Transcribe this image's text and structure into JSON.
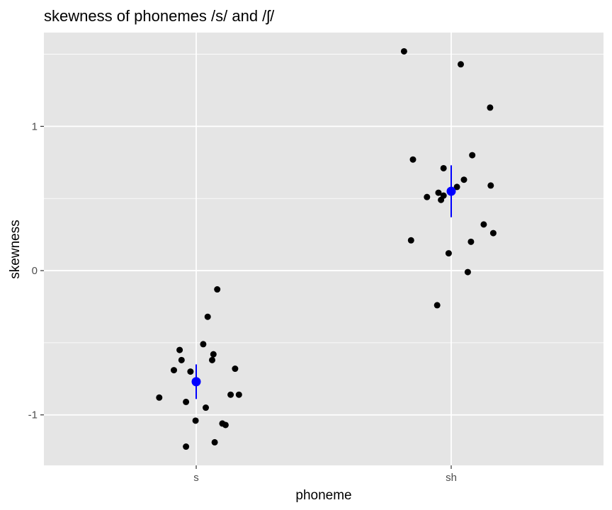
{
  "chart_data": {
    "type": "scatter",
    "title": "skewness of phonemes /s/ and /ʃ/",
    "xlabel": "phoneme",
    "ylabel": "skewness",
    "categories": [
      "s",
      "sh"
    ],
    "y_ticks": [
      -1,
      0,
      1
    ],
    "y_tick_labels": [
      "-1",
      "0",
      "1"
    ],
    "ylim": [
      -1.35,
      1.65
    ],
    "grid": true,
    "colors": {
      "panel": "#E5E5E5",
      "grid": "#FFFFFF",
      "points": "#000000",
      "summary": "#0000FF"
    },
    "series": [
      {
        "category": "s",
        "points": [
          {
            "x": -0.29,
            "y": -0.88
          },
          {
            "x": -0.175,
            "y": -0.69
          },
          {
            "x": -0.13,
            "y": -0.55
          },
          {
            "x": -0.115,
            "y": -0.62
          },
          {
            "x": -0.08,
            "y": -0.91
          },
          {
            "x": -0.08,
            "y": -1.22
          },
          {
            "x": -0.045,
            "y": -0.7
          },
          {
            "x": -0.005,
            "y": -1.04
          },
          {
            "x": 0.055,
            "y": -0.51
          },
          {
            "x": 0.075,
            "y": -0.95
          },
          {
            "x": 0.09,
            "y": -0.32
          },
          {
            "x": 0.125,
            "y": -0.62
          },
          {
            "x": 0.135,
            "y": -0.58
          },
          {
            "x": 0.145,
            "y": -1.19
          },
          {
            "x": 0.165,
            "y": -0.13
          },
          {
            "x": 0.205,
            "y": -1.06
          },
          {
            "x": 0.23,
            "y": -1.07
          },
          {
            "x": 0.27,
            "y": -0.86
          },
          {
            "x": 0.305,
            "y": -0.68
          },
          {
            "x": 0.335,
            "y": -0.86
          }
        ],
        "mean": -0.77,
        "ci": [
          -0.89,
          -0.65
        ]
      },
      {
        "category": "sh",
        "points": [
          {
            "x": -0.37,
            "y": 1.52
          },
          {
            "x": -0.315,
            "y": 0.21
          },
          {
            "x": -0.3,
            "y": 0.77
          },
          {
            "x": -0.19,
            "y": 0.51
          },
          {
            "x": -0.11,
            "y": -0.24
          },
          {
            "x": -0.1,
            "y": 0.54
          },
          {
            "x": -0.08,
            "y": 0.49
          },
          {
            "x": -0.06,
            "y": 0.71
          },
          {
            "x": -0.06,
            "y": 0.52
          },
          {
            "x": -0.02,
            "y": 0.12
          },
          {
            "x": 0.045,
            "y": 0.58
          },
          {
            "x": 0.075,
            "y": 1.43
          },
          {
            "x": 0.1,
            "y": 0.63
          },
          {
            "x": 0.13,
            "y": -0.01
          },
          {
            "x": 0.155,
            "y": 0.2
          },
          {
            "x": 0.165,
            "y": 0.8
          },
          {
            "x": 0.255,
            "y": 0.32
          },
          {
            "x": 0.305,
            "y": 1.13
          },
          {
            "x": 0.31,
            "y": 0.59
          },
          {
            "x": 0.33,
            "y": 0.26
          }
        ],
        "mean": 0.55,
        "ci": [
          0.37,
          0.73
        ]
      }
    ]
  }
}
